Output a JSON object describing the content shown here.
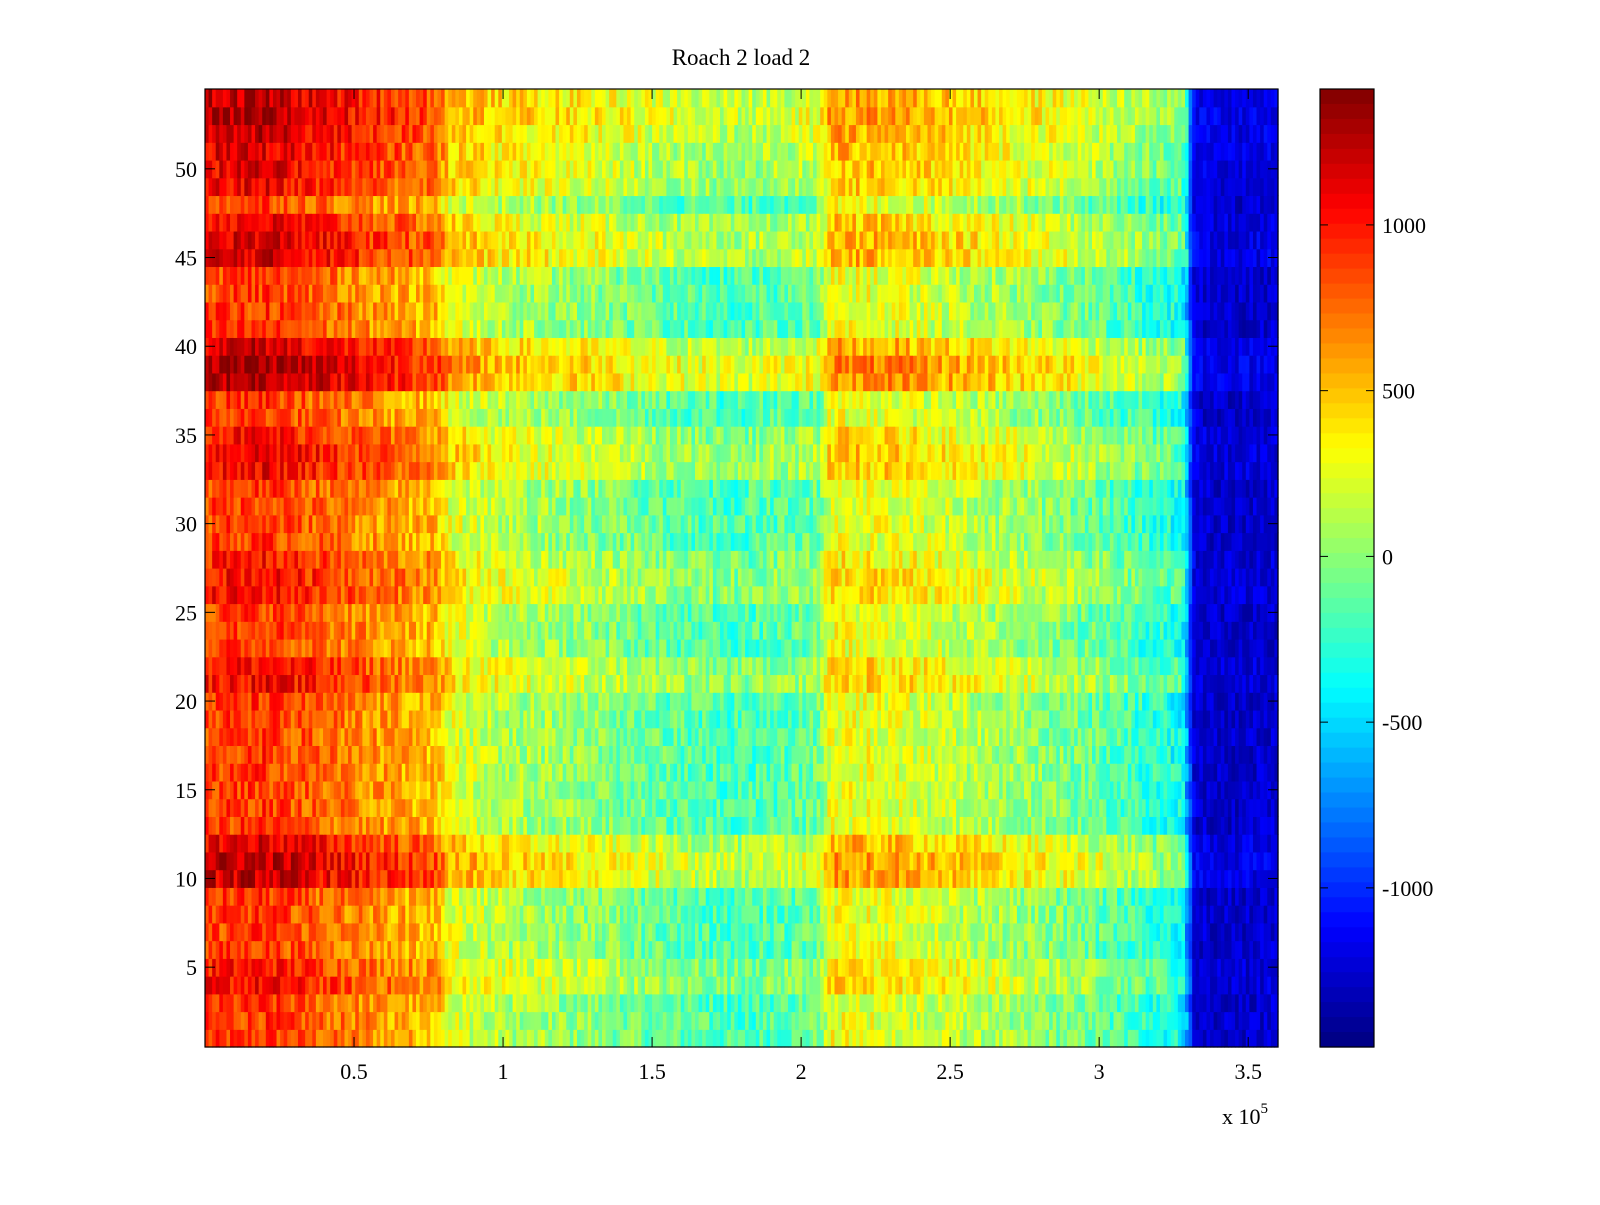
{
  "chart_data": {
    "type": "heatmap",
    "title": "Roach 2 load 2",
    "xlabel": "",
    "ylabel": "",
    "x_exponent_label": "x 10",
    "x_exponent_power": "5",
    "xlim": [
      0,
      360000
    ],
    "ylim": [
      0.5,
      54.5
    ],
    "x_ticks": [
      50000,
      100000,
      150000,
      200000,
      250000,
      300000,
      350000
    ],
    "x_tick_labels": [
      "0.5",
      "1",
      "1.5",
      "2",
      "2.5",
      "3",
      "3.5"
    ],
    "y_ticks": [
      5,
      10,
      15,
      20,
      25,
      30,
      35,
      40,
      45,
      50
    ],
    "y_tick_labels": [
      "5",
      "10",
      "15",
      "20",
      "25",
      "30",
      "35",
      "40",
      "45",
      "50"
    ],
    "rows": 54,
    "colormap": "jet",
    "colorbar": {
      "range": [
        -1480,
        1410
      ],
      "ticks": [
        1000,
        500,
        0,
        -500,
        -1000
      ],
      "tick_labels": [
        "1000",
        "500",
        "0",
        "-500",
        "-1000"
      ]
    },
    "column_profile": {
      "x": [
        0,
        20000,
        40000,
        60000,
        78000,
        82000,
        100000,
        130000,
        160000,
        180000,
        200000,
        206000,
        210000,
        230000,
        250000,
        270000,
        290000,
        310000,
        328000,
        332000,
        345000,
        360000
      ],
      "value": [
        850,
        900,
        750,
        600,
        500,
        250,
        100,
        0,
        -150,
        -200,
        -120,
        -80,
        280,
        250,
        150,
        50,
        -50,
        -200,
        -350,
        -1250,
        -1280,
        -1250
      ]
    },
    "row_offsets": {
      "rows": [
        4,
        5,
        10,
        11,
        12,
        21,
        22,
        26,
        27,
        28,
        33,
        34,
        35,
        38,
        39,
        40,
        45,
        46,
        47,
        49,
        50,
        51,
        52,
        53,
        54
      ],
      "value": [
        150,
        120,
        320,
        350,
        250,
        180,
        150,
        150,
        160,
        100,
        200,
        220,
        150,
        400,
        430,
        300,
        280,
        280,
        200,
        200,
        230,
        250,
        300,
        360,
        330
      ]
    }
  }
}
